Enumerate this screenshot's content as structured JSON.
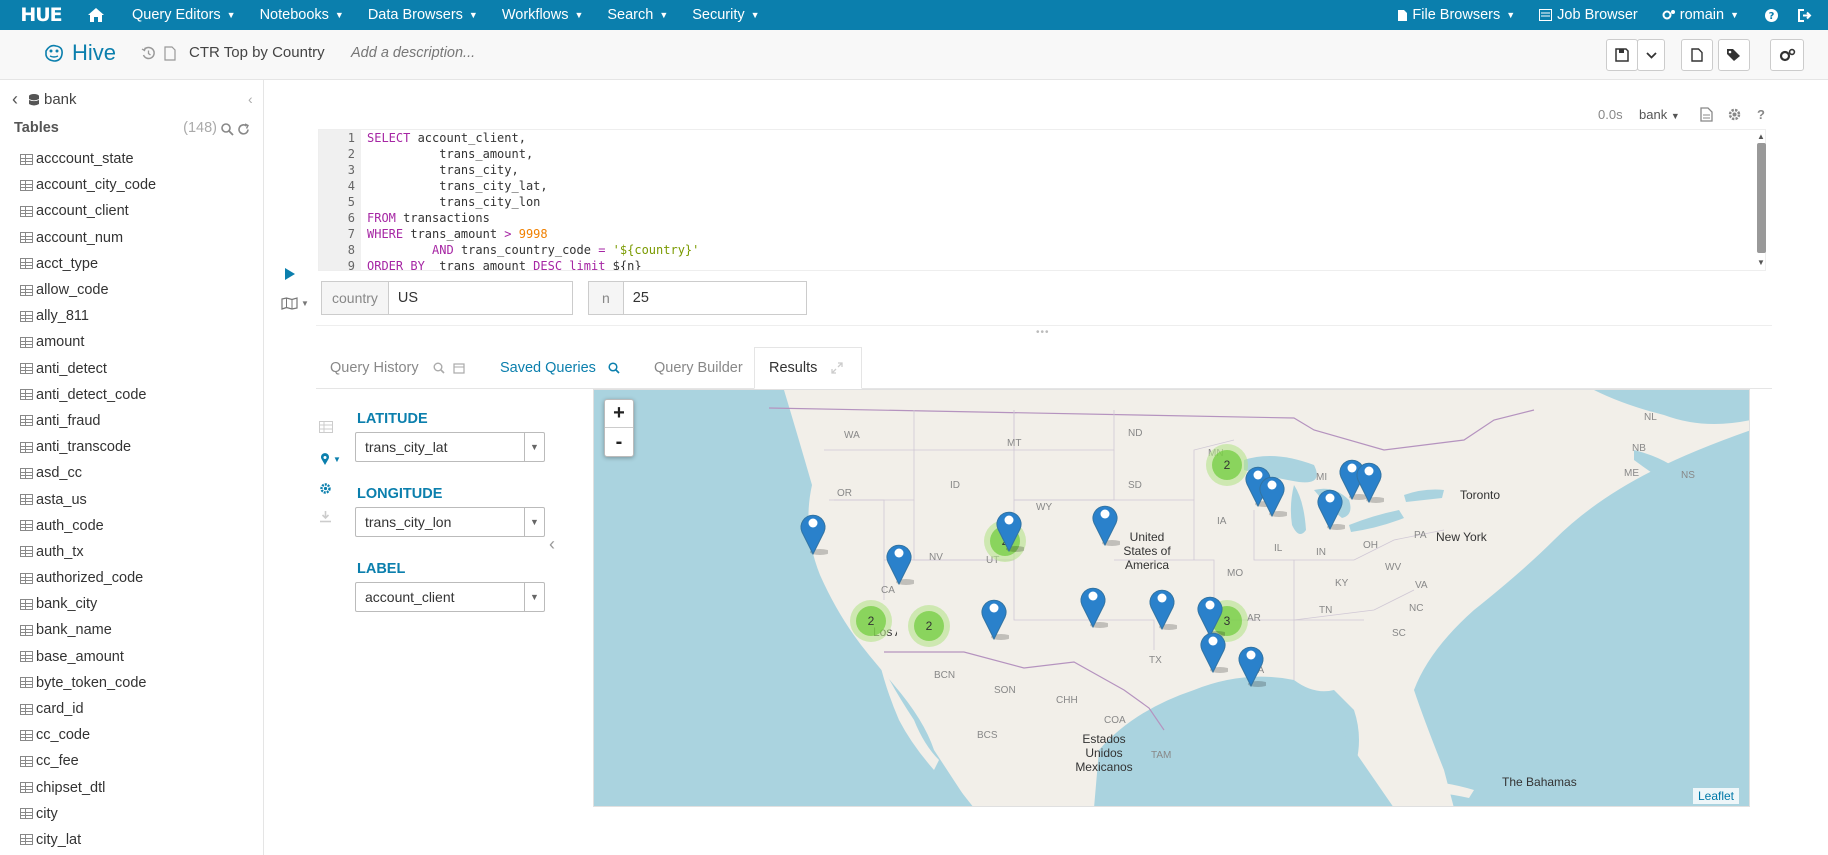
{
  "topnav": {
    "logo": "HUE",
    "menus": [
      "Query Editors",
      "Notebooks",
      "Data Browsers",
      "Workflows",
      "Search",
      "Security"
    ],
    "right": {
      "file_browsers": "File Browsers",
      "job_browser": "Job Browser",
      "user": "romain"
    }
  },
  "header": {
    "app_name": "Hive",
    "query_title": "CTR Top by Country",
    "description_placeholder": "Add a description..."
  },
  "left_panel": {
    "database": "bank",
    "tables_label": "Tables",
    "tables_count": "(148)",
    "tables": [
      "acccount_state",
      "account_city_code",
      "account_client",
      "account_num",
      "acct_type",
      "allow_code",
      "ally_811",
      "amount",
      "anti_detect",
      "anti_detect_code",
      "anti_fraud",
      "anti_transcode",
      "asd_cc",
      "asta_us",
      "auth_code",
      "auth_tx",
      "authorized_code",
      "bank_city",
      "bank_name",
      "base_amount",
      "byte_token_code",
      "card_id",
      "cc_code",
      "cc_fee",
      "chipset_dtl",
      "city",
      "city_lat"
    ]
  },
  "editor": {
    "exec_time": "0.0s",
    "database": "bank",
    "line_numbers": [
      "1",
      "2",
      "3",
      "4",
      "5",
      "6",
      "7",
      "8",
      "9"
    ],
    "lines": [
      [
        {
          "t": "kw",
          "v": "SELECT "
        },
        {
          "t": "pl",
          "v": "account_client,"
        }
      ],
      [
        {
          "t": "pl",
          "v": "          trans_amount,"
        }
      ],
      [
        {
          "t": "pl",
          "v": "          trans_city,"
        }
      ],
      [
        {
          "t": "pl",
          "v": "          trans_city_lat,"
        }
      ],
      [
        {
          "t": "pl",
          "v": "          trans_city_lon"
        }
      ],
      [
        {
          "t": "kw",
          "v": "FROM "
        },
        {
          "t": "pl",
          "v": "transactions"
        }
      ],
      [
        {
          "t": "kw",
          "v": "WHERE "
        },
        {
          "t": "pl",
          "v": "trans_amount "
        },
        {
          "t": "kw",
          "v": "> "
        },
        {
          "t": "num",
          "v": "9998"
        }
      ],
      [
        {
          "t": "pl",
          "v": "         "
        },
        {
          "t": "kw",
          "v": "AND "
        },
        {
          "t": "pl",
          "v": "trans_country_code "
        },
        {
          "t": "kw",
          "v": "= "
        },
        {
          "t": "str",
          "v": "'${country}'"
        }
      ],
      [
        {
          "t": "kw",
          "v": "ORDER BY  "
        },
        {
          "t": "pl",
          "v": "trans_amount "
        },
        {
          "t": "kw",
          "v": "DESC limit "
        },
        {
          "t": "pl",
          "v": "${n}"
        }
      ]
    ]
  },
  "params": [
    {
      "label": "country",
      "value": "US"
    },
    {
      "label": "n",
      "value": "25"
    }
  ],
  "tabs": {
    "history": "Query History",
    "saved": "Saved Queries",
    "builder": "Query Builder",
    "results": "Results"
  },
  "results": {
    "latitude_label": "LATITUDE",
    "latitude_value": "trans_city_lat",
    "longitude_label": "LONGITUDE",
    "longitude_value": "trans_city_lon",
    "label_label": "LABEL",
    "label_value": "account_client"
  },
  "map": {
    "zoom_in": "+",
    "zoom_out": "-",
    "attribution": "Leaflet",
    "state_labels": [
      "WA",
      "MT",
      "ND",
      "MN",
      "OR",
      "ID",
      "SD",
      "WY",
      "IA",
      "NV",
      "UT",
      "IL",
      "IN",
      "OH",
      "MO",
      "KY",
      "WV",
      "VA",
      "CA",
      "TN",
      "NC",
      "SC",
      "AR",
      "TX",
      "LA",
      "NL",
      "NB",
      "NS",
      "ME",
      "MI",
      "PA"
    ],
    "place_labels": [
      "United States of America",
      "New York",
      "Toronto",
      "Los Angeles",
      "Estados Unidos Mexicanos",
      "The Bahamas",
      "BCN",
      "SON",
      "CHH",
      "COA",
      "BCS",
      "TAM"
    ],
    "clusters": [
      {
        "name": "cluster-mn",
        "count": "2"
      },
      {
        "name": "cluster-la",
        "count": "2"
      },
      {
        "name": "cluster-phx",
        "count": "2"
      },
      {
        "name": "cluster-ga",
        "count": "3"
      },
      {
        "name": "cluster-den",
        "count": "2"
      }
    ]
  }
}
